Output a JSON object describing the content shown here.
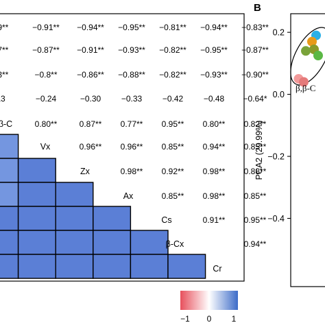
{
  "panel_b_letter": "B",
  "chart_data": [
    {
      "type": "heatmap",
      "panel": "A (cropped)",
      "row_labels": [
        "",
        "",
        "",
        "",
        "β-C",
        "Vx",
        "Zx",
        "Ax",
        "Cs",
        "β-Cx",
        "Cr"
      ],
      "upper_rows": [
        [
          "69**",
          "−0.91**",
          "−0.94**",
          "−0.95**",
          "−0.81**",
          "−0.94**",
          "−0.83**"
        ],
        [
          "67**",
          "−0.87**",
          "−0.91**",
          "−0.93**",
          "−0.82**",
          "−0.95**",
          "−0.87**"
        ],
        [
          "63**",
          "−0.8**",
          "−0.86**",
          "−0.88**",
          "−0.82**",
          "−0.93**",
          "−0.90**"
        ],
        [
          "13",
          "−0.24",
          "−0.30",
          "−0.33",
          "−0.42",
          "−0.48",
          "−0.64*"
        ],
        [
          "",
          "0.80**",
          "0.87**",
          "0.77**",
          "0.95**",
          "0.80**",
          "0.82**"
        ],
        [
          "",
          "",
          "0.96**",
          "0.96**",
          "0.85**",
          "0.94**",
          "0.85**"
        ],
        [
          "",
          "",
          "",
          "0.98**",
          "0.92**",
          "0.98**",
          "0.88**"
        ],
        [
          "",
          "",
          "",
          "",
          "0.85**",
          "0.98**",
          "0.85**"
        ],
        [
          "",
          "",
          "",
          "",
          "",
          "0.91**",
          "0.95**"
        ],
        [
          "",
          "",
          "",
          "",
          "",
          "",
          "0.94**"
        ]
      ],
      "lower_rows_visible_cells": [
        1,
        2,
        3,
        4,
        5,
        6
      ],
      "lower_cell_color": "#5b7fd6",
      "lower_cell_color_edge": "#7496e0",
      "colorbar": {
        "range": [
          -1,
          1
        ],
        "ticks": [
          "−1",
          "0",
          "1"
        ],
        "colors": [
          "#e7505c",
          "#ffffff",
          "#3d6cc8"
        ]
      }
    },
    {
      "type": "scatter",
      "panel": "B (cropped)",
      "ylabel": "PCA2 (29.99%)",
      "y_ticks": [
        "0.2",
        "0.0",
        "−0.2",
        "−0.4"
      ],
      "y_tick_values": [
        0.2,
        0.0,
        -0.2,
        -0.4
      ],
      "ylim": [
        -0.62,
        0.26
      ],
      "annotation": "β,β-C",
      "points": [
        {
          "x": 0.22,
          "y": 0.19,
          "color": "#2ab0e6"
        },
        {
          "x": 0.18,
          "y": 0.17,
          "color": "#e89a1a"
        },
        {
          "x": 0.2,
          "y": 0.145,
          "color": "#8a9a2a"
        },
        {
          "x": 0.12,
          "y": 0.14,
          "color": "#7aa33a"
        },
        {
          "x": 0.24,
          "y": 0.125,
          "color": "#5bb845"
        },
        {
          "x": 0.05,
          "y": 0.05,
          "color": "#f29a9a"
        },
        {
          "x": 0.1,
          "y": 0.04,
          "color": "#e57a7a"
        }
      ]
    }
  ]
}
